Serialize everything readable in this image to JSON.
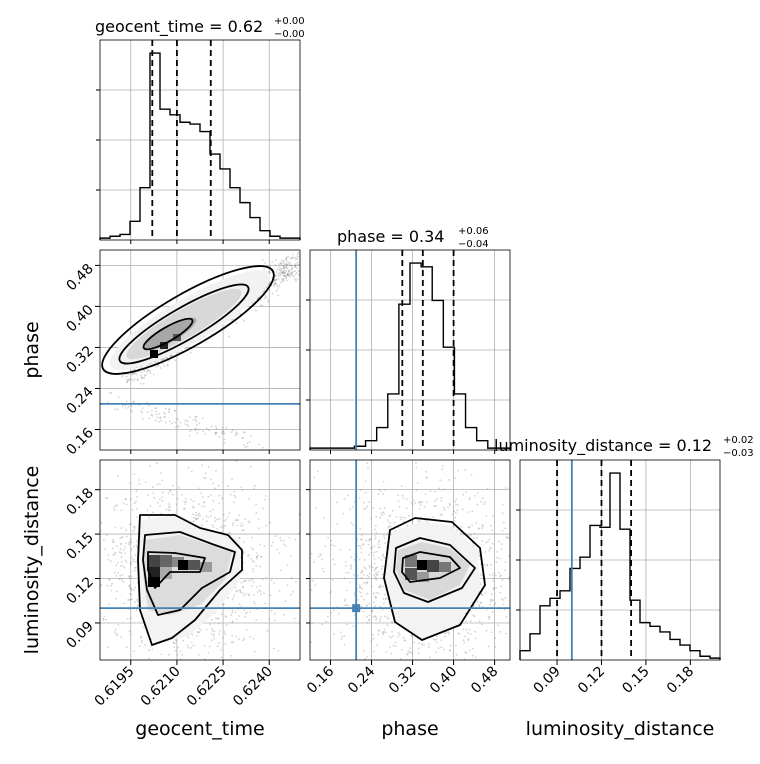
{
  "figure": {
    "type": "corner-plot"
  },
  "colors": {
    "truth": "#4682b4",
    "contour": "#000000",
    "hist": "#000000",
    "grid": "#b0b0b0",
    "scatter": "#808080"
  },
  "titles": {
    "geocent_time": {
      "main": "geocent_time = 0.62",
      "sup": "+0.00",
      "sub": "−0.00"
    },
    "phase": {
      "main": "phase = 0.34",
      "sup": "+0.06",
      "sub": "−0.04"
    },
    "luminosity_distance": {
      "main": "luminosity_distance = 0.12",
      "sup": "+0.02",
      "sub": "−0.03"
    }
  },
  "axis_labels": {
    "geocent_time": "geocent_time",
    "phase": "phase",
    "luminosity_distance": "luminosity_distance"
  },
  "chart_data": [
    {
      "type": "histogram",
      "param": "geocent_time",
      "range": [
        0.6185,
        0.625
      ],
      "ticks": [
        "0.6195",
        "0.6210",
        "0.6225",
        "0.6240"
      ],
      "tick_values": [
        0.6195,
        0.621,
        0.6225,
        0.624
      ],
      "counts": [
        1,
        2,
        3,
        10,
        28,
        100,
        70,
        67,
        63,
        62,
        58,
        46,
        38,
        28,
        20,
        12,
        5,
        2,
        1,
        1
      ],
      "quantiles": [
        0.6202,
        0.621,
        0.6221
      ],
      "grid": true
    },
    {
      "type": "contour-scatter",
      "x_param": "geocent_time",
      "y_param": "phase",
      "xlim": [
        0.6185,
        0.625
      ],
      "ylim": [
        0.12,
        0.51
      ],
      "y_ticks": [
        "0.16",
        "0.24",
        "0.32",
        "0.40",
        "0.48"
      ],
      "y_tick_values": [
        0.16,
        0.24,
        0.32,
        0.4,
        0.48
      ],
      "truth_y": 0.21,
      "grid": true
    },
    {
      "type": "histogram",
      "param": "phase",
      "range": [
        0.12,
        0.51
      ],
      "ticks": [
        "0.16",
        "0.24",
        "0.32",
        "0.40",
        "0.48"
      ],
      "tick_values": [
        0.16,
        0.24,
        0.32,
        0.4,
        0.48
      ],
      "counts": [
        1,
        1,
        1,
        1,
        2,
        5,
        12,
        30,
        78,
        100,
        98,
        80,
        55,
        30,
        12,
        5,
        1,
        1
      ],
      "quantiles": [
        0.3,
        0.34,
        0.4
      ],
      "truth_x": 0.21,
      "grid": true
    },
    {
      "type": "contour-scatter",
      "x_param": "geocent_time",
      "y_param": "luminosity_distance",
      "xlim": [
        0.6185,
        0.625
      ],
      "ylim": [
        0.065,
        0.2
      ],
      "y_ticks": [
        "0.09",
        "0.12",
        "0.15",
        "0.18"
      ],
      "y_tick_values": [
        0.09,
        0.12,
        0.15,
        0.18
      ],
      "truth_y": 0.1,
      "grid": true
    },
    {
      "type": "contour-scatter",
      "x_param": "phase",
      "y_param": "luminosity_distance",
      "xlim": [
        0.12,
        0.51
      ],
      "ylim": [
        0.065,
        0.2
      ],
      "truth_x": 0.21,
      "truth_y": 0.1,
      "grid": true
    },
    {
      "type": "histogram",
      "param": "luminosity_distance",
      "range": [
        0.065,
        0.2
      ],
      "ticks": [
        "0.09",
        "0.12",
        "0.15",
        "0.18"
      ],
      "tick_values": [
        0.09,
        0.12,
        0.15,
        0.18
      ],
      "counts": [
        5,
        14,
        29,
        33,
        37,
        49,
        55,
        72,
        71,
        100,
        70,
        32,
        20,
        18,
        15,
        11,
        8,
        5,
        2,
        1
      ],
      "quantiles": [
        0.09,
        0.12,
        0.14
      ],
      "truth_x": 0.1,
      "grid": true
    }
  ]
}
